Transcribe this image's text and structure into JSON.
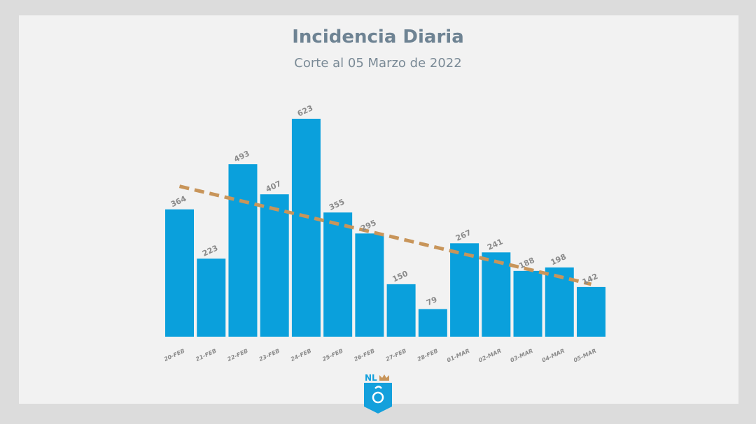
{
  "chart_data": {
    "type": "bar",
    "title": "Incidencia Diaria",
    "subtitle": "Corte al 05 Marzo de 2022",
    "categories": [
      "20-FEB",
      "21-FEB",
      "22-FEB",
      "23-FEB",
      "24-FEB",
      "25-FEB",
      "26-FEB",
      "27-FEB",
      "28-FEB",
      "01-MAR",
      "02-MAR",
      "03-MAR",
      "04-MAR",
      "05-MAR"
    ],
    "values": [
      364,
      223,
      493,
      407,
      623,
      355,
      295,
      150,
      79,
      267,
      241,
      188,
      198,
      142
    ],
    "trendline": {
      "type": "linear",
      "start": 430,
      "end": 150
    },
    "ylim": [
      0,
      650
    ],
    "grid": false,
    "colors": {
      "bar": "#0aa0dc",
      "trend": "#c8955a"
    }
  },
  "logo": {
    "text": "NL"
  }
}
